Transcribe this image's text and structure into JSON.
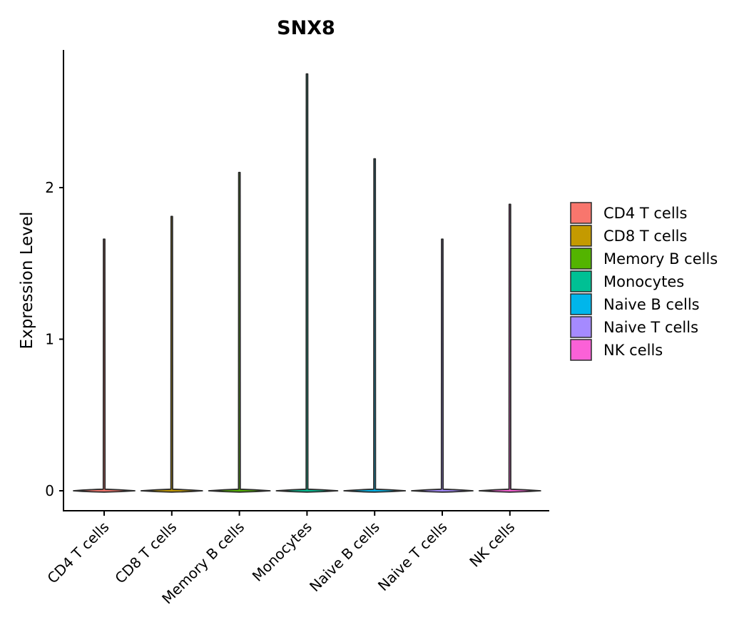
{
  "chart_data": {
    "type": "violin",
    "title": "SNX8",
    "xlabel": "",
    "ylabel": "Expression Level",
    "ylim": [
      -0.14,
      2.9
    ],
    "yticks": [
      0,
      1,
      2
    ],
    "categories": [
      "CD4 T cells",
      "CD8 T cells",
      "Memory B cells",
      "Monocytes",
      "Naive B cells",
      "Naive T cells",
      "NK cells"
    ],
    "max_values": [
      1.66,
      1.81,
      2.1,
      2.75,
      2.19,
      1.66,
      1.89
    ],
    "colors": [
      "#F8766D",
      "#C49A00",
      "#53B400",
      "#00C094",
      "#00B6EB",
      "#A58AFF",
      "#FB61D7"
    ],
    "legend": {
      "position": "right",
      "entries": [
        "CD4 T cells",
        "CD8 T cells",
        "Memory B cells",
        "Monocytes",
        "Naive B cells",
        "Naive T cells",
        "NK cells"
      ]
    },
    "grid": false
  }
}
